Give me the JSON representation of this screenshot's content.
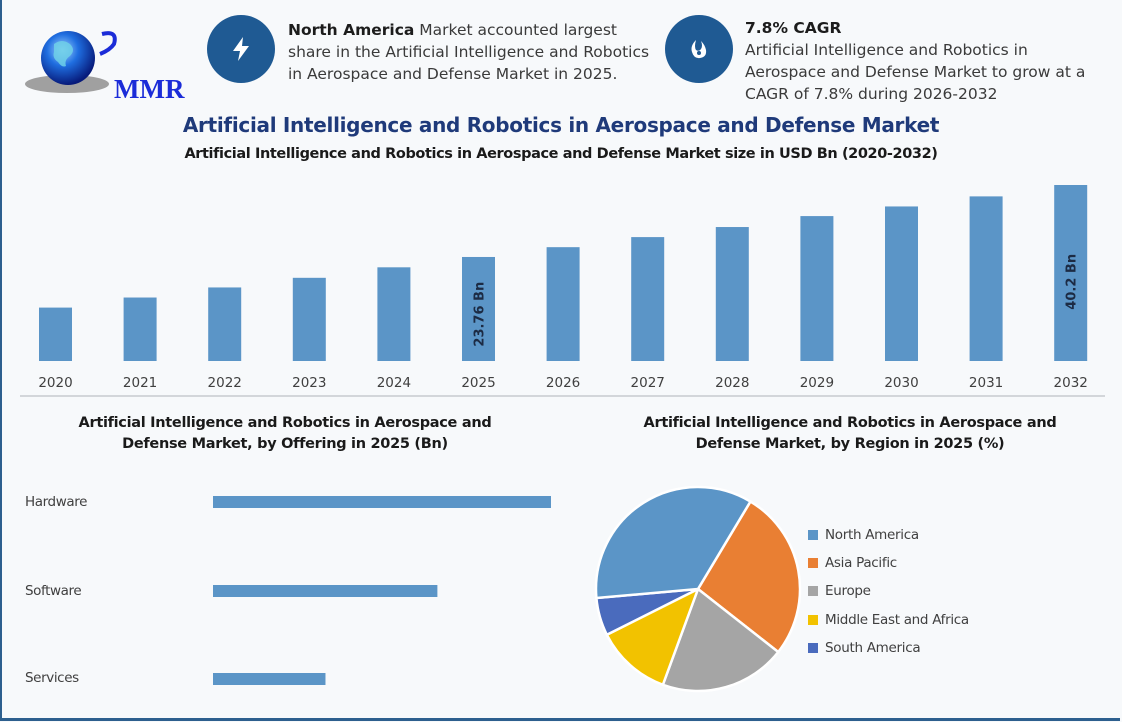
{
  "logo": {
    "text": "MMR",
    "icon": "globe-icon"
  },
  "info_blocks": [
    {
      "icon": "lightning-bolt-icon",
      "bold": "North America",
      "line1": " Market accounted largest",
      "line2": "share in the Artificial Intelligence and Robotics",
      "line3": "in Aerospace and Defense Market in 2025."
    },
    {
      "icon": "flame-drop-icon",
      "bold": "7.8% CAGR",
      "line1": "Artificial Intelligence and Robotics in",
      "line2": "Aerospace and Defense Market to grow at a",
      "line3": "CAGR of 7.8% during 2026-2032"
    }
  ],
  "colors": {
    "accent_dark": "#1f5a93",
    "title_blue": "#1f3a7a",
    "bar": "#5b95c7"
  },
  "chart_data": [
    {
      "type": "bar",
      "title": "Artificial Intelligence and Robotics in Aerospace and Defense Market",
      "subtitle": "Artificial Intelligence and Robotics in Aerospace and Defense Market size in USD Bn (2020-2032)",
      "xlabel": "",
      "ylabel": "USD Bn",
      "categories": [
        "2020",
        "2021",
        "2022",
        "2023",
        "2024",
        "2025",
        "2026",
        "2027",
        "2028",
        "2029",
        "2030",
        "2031",
        "2032"
      ],
      "values": [
        12.2,
        14.5,
        16.8,
        19.0,
        21.4,
        23.76,
        26.0,
        28.3,
        30.6,
        33.1,
        35.3,
        37.6,
        40.2
      ],
      "data_labels": [
        {
          "category": "2025",
          "text": "23.76 Bn"
        },
        {
          "category": "2032",
          "text": "40.2 Bn"
        }
      ],
      "ylim": [
        0,
        40.2
      ],
      "grid": false,
      "legend": "none"
    },
    {
      "type": "bar",
      "orientation": "horizontal",
      "title": "Artificial Intelligence and Robotics in Aerospace and Defense Market, by Offering in 2025 (Bn)",
      "title_line1": "Artificial Intelligence and Robotics in Aerospace and",
      "title_line2": "Defense Market, by Offering in 2025 (Bn)",
      "categories": [
        "Hardware",
        "Software",
        "Services"
      ],
      "values": [
        11.9,
        7.9,
        3.96
      ],
      "grid": false,
      "legend": "none"
    },
    {
      "type": "pie",
      "title": "Artificial Intelligence and Robotics in Aerospace and Defense Market, by Region in 2025 (%)",
      "title_line1": "Artificial Intelligence and Robotics in Aerospace and",
      "title_line2": "Defense Market, by Region in 2025 (%)",
      "labels": [
        "North America",
        "Asia Pacific",
        "Europe",
        "Middle East and Africa",
        "South America"
      ],
      "values": [
        35,
        27,
        20,
        12,
        6
      ],
      "colors": [
        "#5b95c7",
        "#e97f33",
        "#a5a5a5",
        "#f2c200",
        "#4a6bbd"
      ],
      "legend": "right"
    }
  ]
}
